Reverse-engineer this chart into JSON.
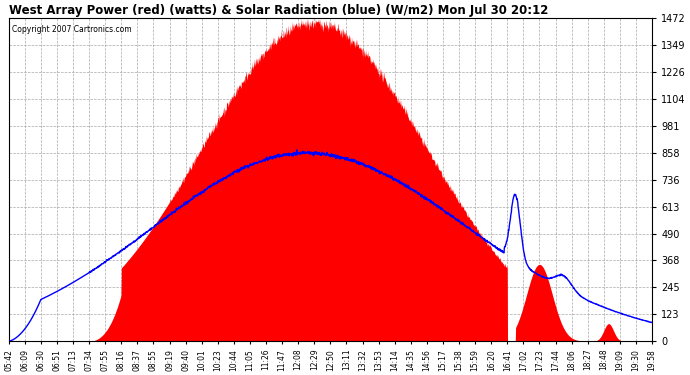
{
  "title": "West Array Power (red) (watts) & Solar Radiation (blue) (W/m2) Mon Jul 30 20:12",
  "copyright": "Copyright 2007 Cartronics.com",
  "yticks": [
    0.0,
    122.6,
    245.3,
    367.9,
    490.5,
    613.1,
    735.8,
    858.4,
    981.0,
    1103.7,
    1226.3,
    1348.9,
    1471.5
  ],
  "ymax": 1471.5,
  "ymin": 0.0,
  "bg_color": "#ffffff",
  "grid_color": "#aaaaaa",
  "red_color": "#ff0000",
  "blue_color": "#0000ff",
  "x_labels": [
    "05:42",
    "06:09",
    "06:30",
    "06:51",
    "07:13",
    "07:34",
    "07:55",
    "08:16",
    "08:37",
    "08:55",
    "09:19",
    "09:40",
    "10:01",
    "10:23",
    "10:44",
    "11:05",
    "11:26",
    "11:47",
    "12:08",
    "12:29",
    "12:50",
    "13:11",
    "13:32",
    "13:53",
    "14:14",
    "14:35",
    "14:56",
    "15:17",
    "15:38",
    "15:59",
    "16:20",
    "16:41",
    "17:02",
    "17:23",
    "17:44",
    "18:06",
    "18:27",
    "18:48",
    "19:09",
    "19:30",
    "19:58"
  ]
}
